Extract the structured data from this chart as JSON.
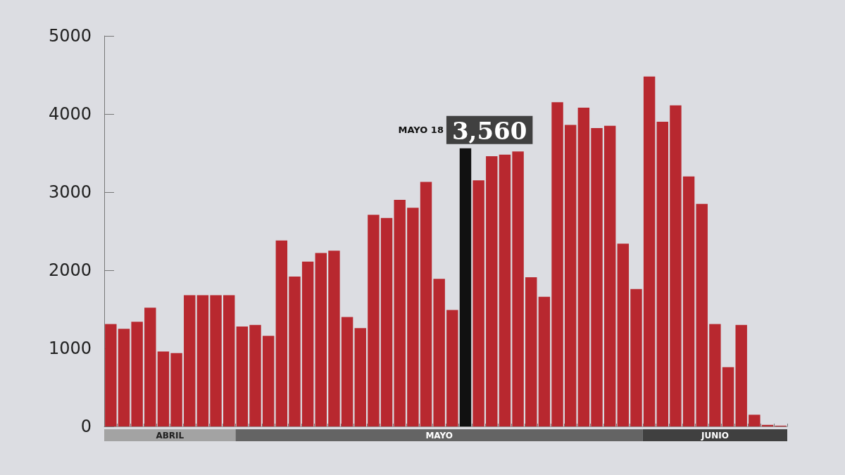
{
  "chart_data": {
    "type": "bar",
    "categories": [
      null,
      null,
      null,
      null,
      null,
      null,
      null,
      null,
      null,
      null,
      null,
      null,
      null,
      null,
      null,
      null,
      null,
      null,
      null,
      null,
      null,
      null,
      null,
      null,
      null,
      null,
      null,
      null,
      null,
      null,
      null,
      null,
      null,
      null,
      null,
      null,
      null,
      null,
      null,
      null,
      null,
      null,
      null,
      null,
      null,
      null,
      null,
      null,
      null,
      null,
      null,
      null
    ],
    "values": [
      1310,
      1250,
      1340,
      1520,
      960,
      940,
      1680,
      1680,
      1680,
      1680,
      1280,
      1300,
      1160,
      2380,
      1920,
      2110,
      2220,
      2250,
      1400,
      1260,
      2710,
      2670,
      2900,
      2800,
      3130,
      1890,
      1490,
      3560,
      3150,
      3460,
      3480,
      3520,
      1910,
      1660,
      4150,
      3860,
      4080,
      3820,
      3850,
      2340,
      1760,
      4480,
      3900,
      4110,
      3200,
      2850,
      1310,
      760,
      1300,
      150,
      20,
      10
    ],
    "colors": [
      "#b8282f",
      "#b8282f",
      "#b8282f",
      "#b8282f",
      "#b8282f",
      "#b8282f",
      "#b8282f",
      "#b8282f",
      "#b8282f",
      "#b8282f",
      "#b8282f",
      "#b8282f",
      "#b8282f",
      "#b8282f",
      "#b8282f",
      "#b8282f",
      "#b8282f",
      "#b8282f",
      "#b8282f",
      "#b8282f",
      "#b8282f",
      "#b8282f",
      "#b8282f",
      "#b8282f",
      "#b8282f",
      "#b8282f",
      "#b8282f",
      "#111111",
      "#b8282f",
      "#b8282f",
      "#b8282f",
      "#b8282f",
      "#b8282f",
      "#b8282f",
      "#b8282f",
      "#b8282f",
      "#b8282f",
      "#b8282f",
      "#b8282f",
      "#b8282f",
      "#b8282f",
      "#b8282f",
      "#b8282f",
      "#b8282f",
      "#b8282f",
      "#b8282f",
      "#b8282f",
      "#b8282f",
      "#b8282f",
      "#b8282f",
      "#b8282f",
      "#b8282f"
    ],
    "value_labels": [
      null,
      null,
      null,
      null,
      null,
      null,
      null,
      null,
      null,
      null,
      null,
      null,
      null,
      null,
      null,
      null,
      null,
      null,
      null,
      null,
      null,
      null,
      null,
      null,
      null,
      null,
      null,
      "3,560",
      null,
      null,
      null,
      null,
      null,
      null,
      null,
      null,
      null,
      null,
      null,
      null,
      null,
      null,
      null,
      null,
      null,
      null,
      null,
      null,
      null,
      null,
      null,
      null
    ],
    "annotations": [
      "MAYO 18",
      "ABRIL",
      "MAYO",
      "JUNIO"
    ],
    "ylim": [
      0,
      5000
    ],
    "yticks": [
      0,
      1000,
      2000,
      3000,
      4000,
      5000
    ]
  }
}
